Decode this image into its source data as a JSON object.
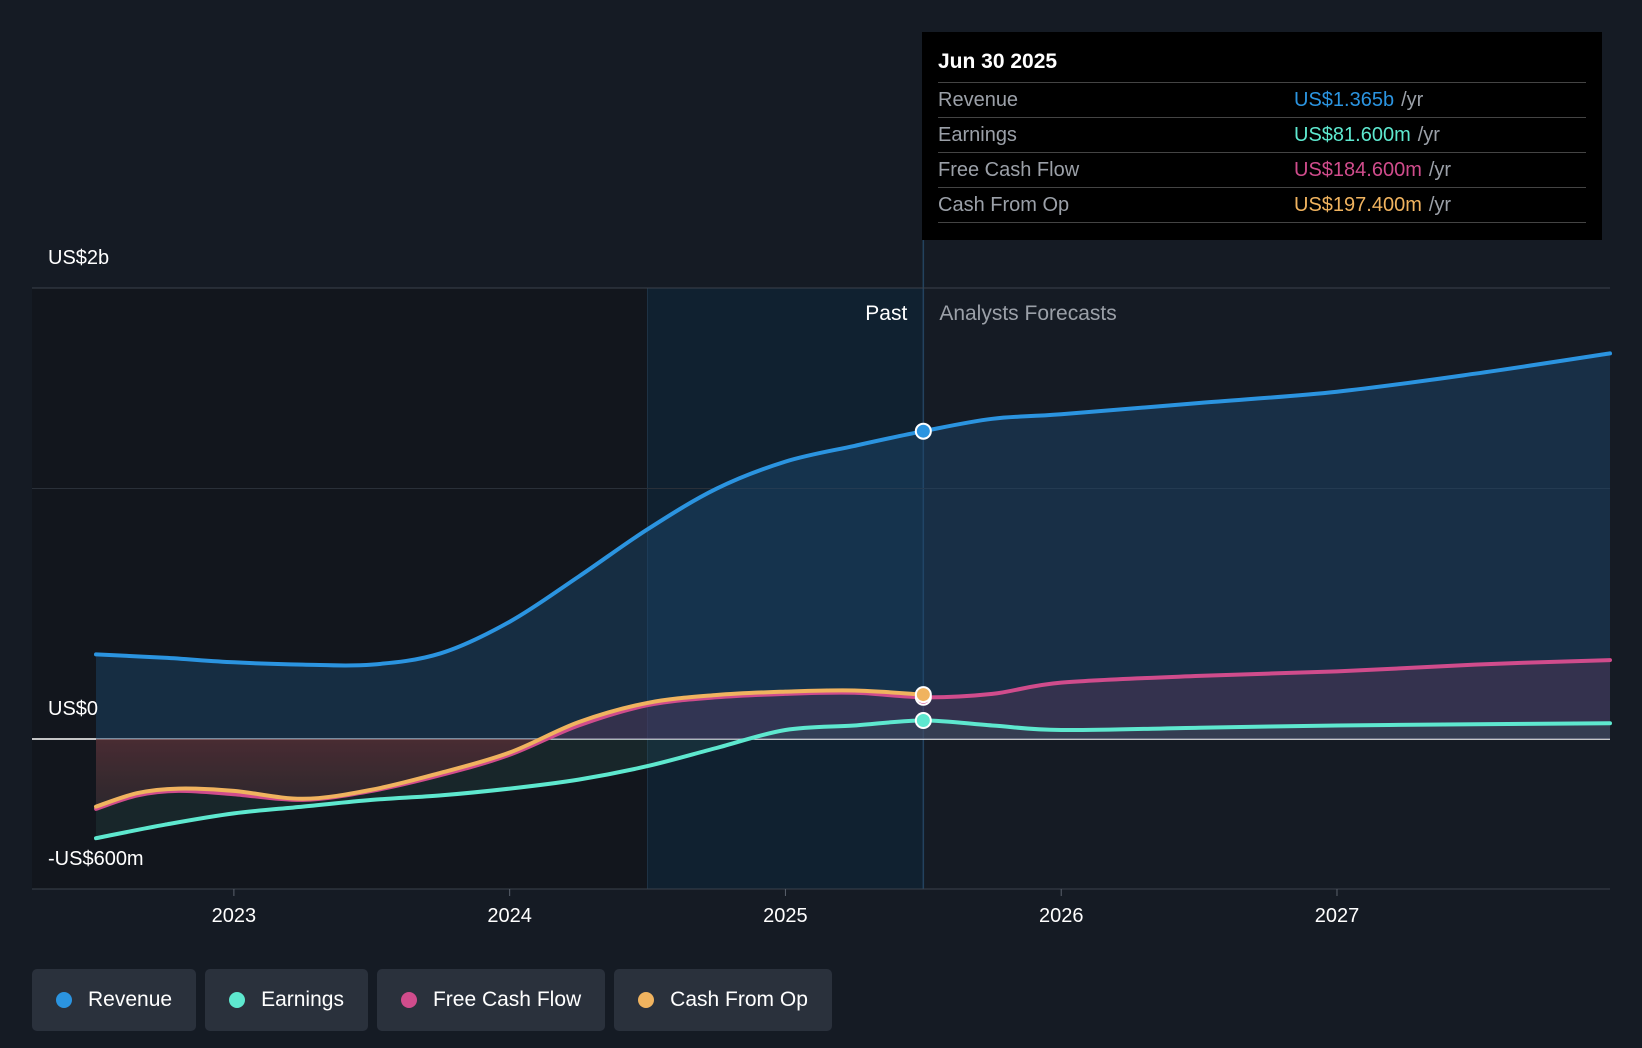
{
  "tooltip": {
    "date": "Jun 30 2025",
    "rows": [
      {
        "label": "Revenue",
        "value": "US$1.365b",
        "unit": "/yr",
        "color": "#2b94e0"
      },
      {
        "label": "Earnings",
        "value": "US$81.600m",
        "unit": "/yr",
        "color": "#5ee8cf"
      },
      {
        "label": "Free Cash Flow",
        "value": "US$184.600m",
        "unit": "/yr",
        "color": "#d04c8c"
      },
      {
        "label": "Cash From Op",
        "value": "US$197.400m",
        "unit": "/yr",
        "color": "#f0b35f"
      }
    ]
  },
  "regions": {
    "past": "Past",
    "forecast": "Analysts Forecasts"
  },
  "legend": [
    {
      "label": "Revenue",
      "color": "#2b94e0"
    },
    {
      "label": "Earnings",
      "color": "#5ee8cf"
    },
    {
      "label": "Free Cash Flow",
      "color": "#d04c8c"
    },
    {
      "label": "Cash From Op",
      "color": "#f0b35f"
    }
  ],
  "chart_data": {
    "type": "line",
    "y_tick_labels": [
      "US$2b",
      "US$0",
      "-US$600m"
    ],
    "x_tick_labels": [
      "2023",
      "2024",
      "2025",
      "2026",
      "2027"
    ],
    "ylim": [
      -600,
      2000
    ],
    "x_range": [
      2022.5,
      2027.99
    ],
    "past_end": 2025.5,
    "highlight_start": 2024.5,
    "series": [
      {
        "name": "Revenue",
        "color": "#2b94e0",
        "x": [
          2022.5,
          2022.75,
          2023.0,
          2023.25,
          2023.5,
          2023.75,
          2024.0,
          2024.25,
          2024.5,
          2024.75,
          2025.0,
          2025.25,
          2025.5,
          2025.75,
          2026.0,
          2026.5,
          2027.0,
          2027.5,
          2027.99
        ],
        "y": [
          375,
          360,
          340,
          330,
          330,
          380,
          520,
          720,
          930,
          1110,
          1230,
          1300,
          1365,
          1420,
          1440,
          1490,
          1540,
          1620,
          1710
        ]
      },
      {
        "name": "Earnings",
        "color": "#5ee8cf",
        "x": [
          2022.5,
          2022.75,
          2023.0,
          2023.25,
          2023.5,
          2023.75,
          2024.0,
          2024.25,
          2024.5,
          2024.75,
          2025.0,
          2025.25,
          2025.5,
          2025.75,
          2026.0,
          2026.5,
          2027.0,
          2027.5,
          2027.99
        ],
        "y": [
          -440,
          -380,
          -330,
          -300,
          -270,
          -250,
          -220,
          -180,
          -120,
          -40,
          40,
          60,
          82,
          60,
          40,
          50,
          60,
          65,
          70
        ]
      },
      {
        "name": "Free Cash Flow",
        "color": "#d04c8c",
        "x": [
          2022.5,
          2022.65,
          2022.8,
          2023.0,
          2023.25,
          2023.5,
          2023.75,
          2024.0,
          2024.25,
          2024.5,
          2024.75,
          2025.0,
          2025.25,
          2025.5,
          2025.75,
          2026.0,
          2026.5,
          2027.0,
          2027.5,
          2027.99
        ],
        "y": [
          -310,
          -250,
          -230,
          -245,
          -270,
          -230,
          -160,
          -70,
          60,
          150,
          185,
          200,
          205,
          185,
          200,
          250,
          280,
          300,
          330,
          350
        ]
      },
      {
        "name": "Cash From Op",
        "color": "#f0b35f",
        "x": [
          2022.5,
          2022.65,
          2022.8,
          2023.0,
          2023.25,
          2023.5,
          2023.75,
          2024.0,
          2024.25,
          2024.5,
          2024.75,
          2025.0,
          2025.25,
          2025.5
        ],
        "y": [
          -300,
          -240,
          -220,
          -230,
          -265,
          -225,
          -150,
          -60,
          75,
          160,
          195,
          210,
          215,
          197
        ]
      }
    ]
  }
}
